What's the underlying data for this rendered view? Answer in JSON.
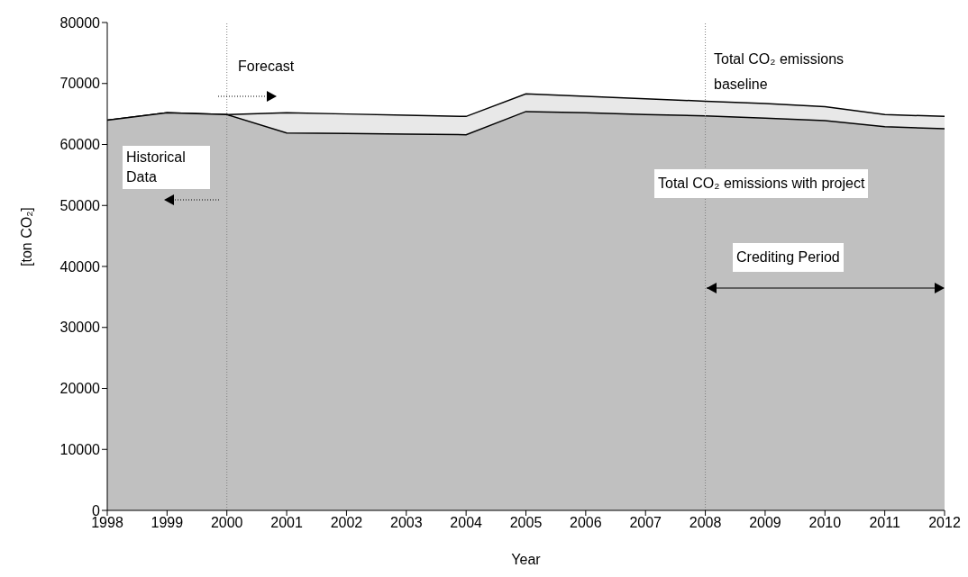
{
  "chart_data": {
    "type": "area",
    "xlabel": "Year",
    "ylabel": "[ton CO₂]",
    "x": [
      1998,
      1999,
      2000,
      2001,
      2002,
      2003,
      2004,
      2005,
      2006,
      2007,
      2008,
      2009,
      2010,
      2011,
      2012
    ],
    "xlim": [
      1998,
      2012
    ],
    "xticks": [
      1998,
      1999,
      2000,
      2001,
      2002,
      2003,
      2004,
      2005,
      2006,
      2007,
      2008,
      2009,
      2010,
      2011,
      2012
    ],
    "ylim": [
      0,
      80000
    ],
    "yticks": [
      0,
      10000,
      20000,
      30000,
      40000,
      50000,
      60000,
      70000,
      80000
    ],
    "series": [
      {
        "name": "Total CO₂ emissions baseline",
        "color": "#e8e8e8",
        "values": [
          64000,
          65200,
          64900,
          65200,
          65000,
          64800,
          64600,
          68300,
          67900,
          67500,
          67100,
          66700,
          66200,
          64900,
          64600
        ]
      },
      {
        "name": "Total CO₂ emissions with project",
        "color": "#c0c0c0",
        "values": [
          64000,
          65200,
          64900,
          61900,
          61800,
          61700,
          61600,
          65400,
          65200,
          64900,
          64700,
          64300,
          63900,
          62900,
          62600
        ]
      }
    ],
    "ref_lines": [
      {
        "axis": "x",
        "value": 2000,
        "color": "#808080",
        "line_style": "dotted"
      },
      {
        "axis": "x",
        "value": 2008,
        "color": "#808080",
        "line_style": "dotted"
      }
    ],
    "annotations": [
      "Forecast",
      "Historical Data",
      "Crediting Period"
    ],
    "grid": false
  }
}
